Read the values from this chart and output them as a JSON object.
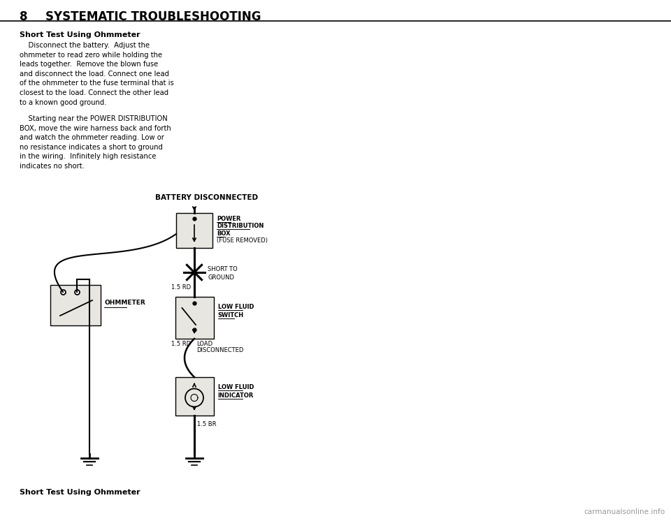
{
  "bg_color": "#ffffff",
  "title_num": "8",
  "title_text": "SYSTEMATIC TROUBLESHOOTING",
  "title_fontsize": 12,
  "body_text_line1": "Short Test Using Ohmmeter",
  "body_text_para1": "    Disconnect the battery.  Adjust the\nohmmeter to read zero while holding the\nleads together.  Remove the blown fuse\nand disconnect the load. Connect one lead\nof the ohmmeter to the fuse terminal that is\nclosest to the load. Connect the other lead\nto a known good ground.",
  "body_text_para2": "    Starting near the POWER DISTRIBUTION\nBOX, move the wire harness back and forth\nand watch the ohmmeter reading. Low or\nno resistance indicates a short to ground\nin the wiring.  Infinitely high resistance\nindicates no short.",
  "diagram_title": "BATTERY DISCONNECTED",
  "footer_text": "Short Test Using Ohmmeter",
  "watermark": "carmanualsonline.info",
  "box1_label_lines": [
    "POWER",
    "DISTRIBUTION",
    "BOX",
    "(FUSE REMOVED)"
  ],
  "box2_label_lines": [
    "LOW FLUID",
    "SWITCH"
  ],
  "box3_label_lines": [
    "LOW FLUID",
    "INDICATOR"
  ],
  "wire1_label": "1.5 RD",
  "wire2_label": "1.5 RD",
  "wire3_label_1": "LOAD",
  "wire3_label_2": "DISCONNECTED",
  "wire4_label": "1.5 BR",
  "short_label1": "SHORT TO",
  "short_label2": "GROUND",
  "ohmmeter_label": "OHMMETER"
}
